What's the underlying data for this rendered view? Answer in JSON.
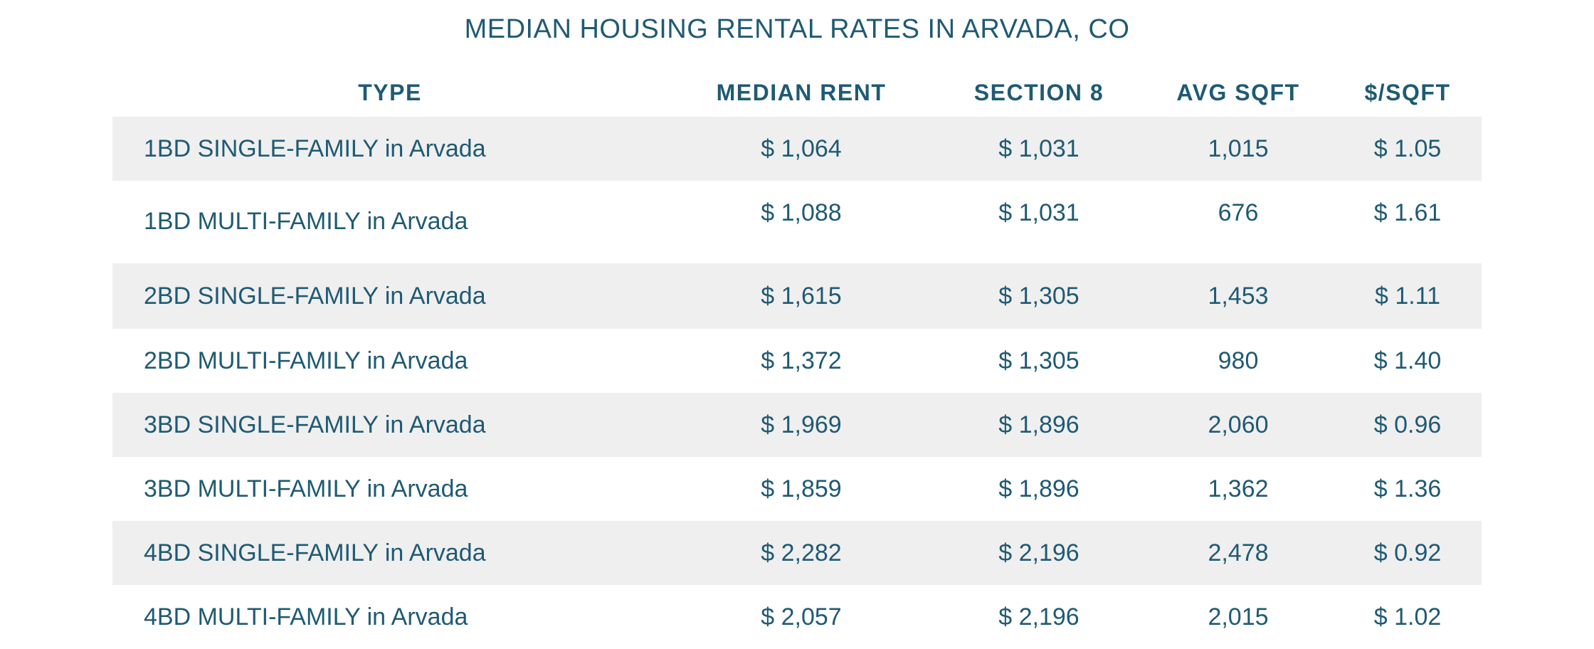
{
  "title": "MEDIAN HOUSING RENTAL RATES IN ARVADA, CO",
  "columns": {
    "type": "TYPE",
    "median_rent": "MEDIAN RENT",
    "section8": "SECTION 8",
    "avg_sqft": "AVG SQFT",
    "price_per_sqft": "$/SQFT"
  },
  "rows": [
    {
      "type": "1BD SINGLE-FAMILY in Arvada",
      "median_rent": "$ 1,064",
      "section8": "$ 1,031",
      "avg_sqft": "1,015",
      "price_per_sqft": "$ 1.05"
    },
    {
      "type": "1BD MULTI-FAMILY in Arvada",
      "median_rent": "$ 1,088",
      "section8": "$ 1,031",
      "avg_sqft": "676",
      "price_per_sqft": "$ 1.61"
    },
    {
      "type": "2BD SINGLE-FAMILY in Arvada",
      "median_rent": "$ 1,615",
      "section8": "$ 1,305",
      "avg_sqft": "1,453",
      "price_per_sqft": "$ 1.11"
    },
    {
      "type": "2BD MULTI-FAMILY in Arvada",
      "median_rent": "$ 1,372",
      "section8": "$ 1,305",
      "avg_sqft": "980",
      "price_per_sqft": "$ 1.40"
    },
    {
      "type": "3BD SINGLE-FAMILY in Arvada",
      "median_rent": "$ 1,969",
      "section8": "$ 1,896",
      "avg_sqft": "2,060",
      "price_per_sqft": "$ 0.96"
    },
    {
      "type": "3BD MULTI-FAMILY in Arvada",
      "median_rent": "$ 1,859",
      "section8": "$ 1,896",
      "avg_sqft": "1,362",
      "price_per_sqft": "$ 1.36"
    },
    {
      "type": "4BD SINGLE-FAMILY in Arvada",
      "median_rent": "$ 2,282",
      "section8": "$ 2,196",
      "avg_sqft": "2,478",
      "price_per_sqft": "$ 0.92"
    },
    {
      "type": "4BD MULTI-FAMILY in Arvada",
      "median_rent": "$ 2,057",
      "section8": "$ 2,196",
      "avg_sqft": "2,015",
      "price_per_sqft": "$ 1.02"
    }
  ],
  "colors": {
    "text": "#1f5a73",
    "row_shade": "#efefef",
    "background": "#ffffff"
  }
}
